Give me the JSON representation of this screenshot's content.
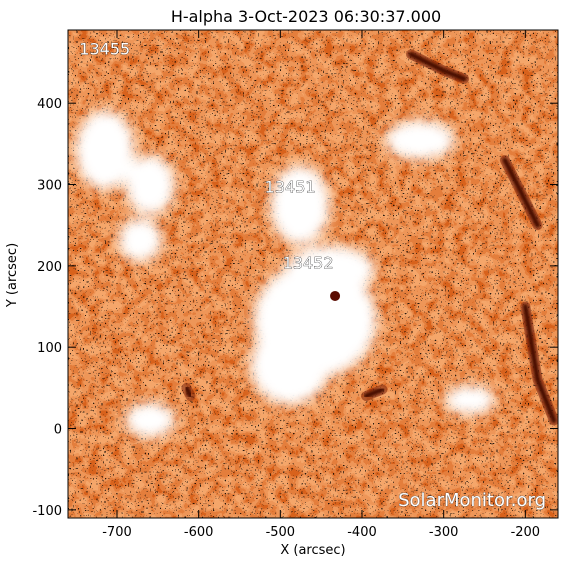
{
  "chart_data": {
    "type": "heatmap",
    "title": "H-alpha  3-Oct-2023 06:30:37.000",
    "xlabel": "X (arcsec)",
    "ylabel": "Y (arcsec)",
    "xlim": [
      -760,
      -160
    ],
    "ylim": [
      -110,
      490
    ],
    "x_ticks": [
      -700,
      -600,
      -500,
      -400,
      -300,
      -200
    ],
    "y_ticks": [
      -100,
      0,
      100,
      200,
      300,
      400
    ],
    "colormap": [
      "#000000",
      "#5a1a08",
      "#b83c0c",
      "#ea7a26",
      "#f7b37a",
      "#ffffff"
    ],
    "regions": [
      {
        "label": "13455",
        "x": -715,
        "y": 460
      },
      {
        "label": "13451",
        "x": -488,
        "y": 290
      },
      {
        "label": "13452",
        "x": -466,
        "y": 197
      }
    ],
    "filaments": [
      {
        "points": [
          [
            -340,
            460
          ],
          [
            -300,
            440
          ],
          [
            -275,
            430
          ]
        ]
      },
      {
        "points": [
          [
            -225,
            330
          ],
          [
            -205,
            290
          ],
          [
            -185,
            250
          ]
        ]
      },
      {
        "points": [
          [
            -200,
            150
          ],
          [
            -185,
            60
          ],
          [
            -165,
            10
          ]
        ]
      },
      {
        "points": [
          [
            -395,
            40
          ],
          [
            -375,
            48
          ]
        ]
      },
      {
        "points": [
          [
            -615,
            50
          ],
          [
            -610,
            40
          ]
        ]
      }
    ],
    "bright_points": [
      {
        "x": -433,
        "y": 163
      }
    ]
  },
  "watermark": "SolarMonitor.org"
}
